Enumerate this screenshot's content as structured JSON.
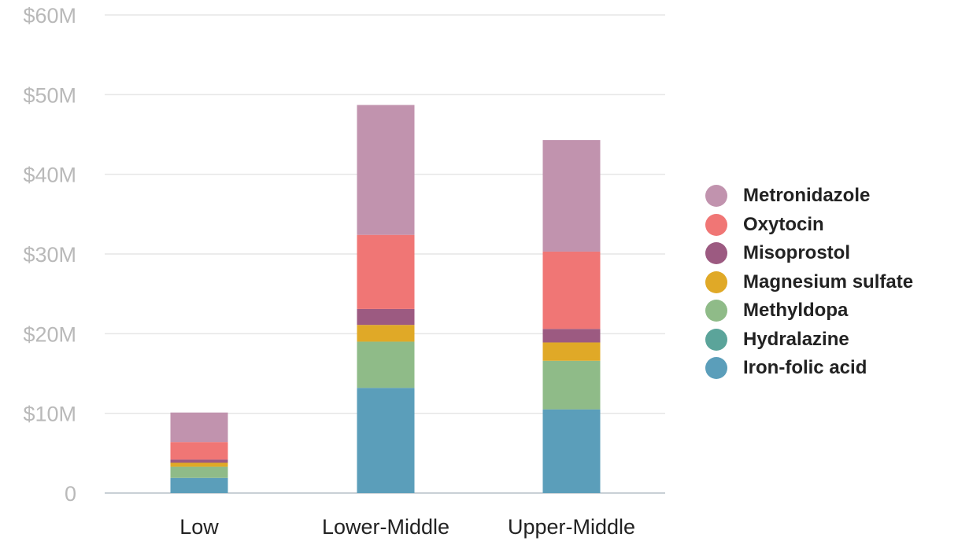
{
  "chart_data": {
    "type": "bar",
    "stacked": true,
    "categories": [
      "Low",
      "Lower-Middle",
      "Upper-Middle"
    ],
    "ylim": [
      0,
      60
    ],
    "yticks": [
      {
        "value": 0,
        "label": "0"
      },
      {
        "value": 10,
        "label": "$10M"
      },
      {
        "value": 20,
        "label": "$20M"
      },
      {
        "value": 30,
        "label": "$30M"
      },
      {
        "value": 40,
        "label": "$40M"
      },
      {
        "value": 50,
        "label": "$50M"
      },
      {
        "value": 60,
        "label": "$60M"
      }
    ],
    "grid": true,
    "legend_position": "right",
    "series": [
      {
        "name": "Iron-folic acid",
        "color": "#5b9eba",
        "values": [
          1.9,
          13.2,
          10.5
        ]
      },
      {
        "name": "Hydralazine",
        "color": "#5ba49a",
        "values": [
          0.0,
          0.0,
          0.0
        ]
      },
      {
        "name": "Methyldopa",
        "color": "#8fbb88",
        "values": [
          1.4,
          5.8,
          6.1
        ]
      },
      {
        "name": "Magnesium sulfate",
        "color": "#e0a927",
        "values": [
          0.5,
          2.1,
          2.3
        ]
      },
      {
        "name": "Misoprostol",
        "color": "#9c5a81",
        "values": [
          0.4,
          2.0,
          1.7
        ]
      },
      {
        "name": "Oxytocin",
        "color": "#f07675",
        "values": [
          2.2,
          9.3,
          9.7
        ]
      },
      {
        "name": "Metronidazole",
        "color": "#c193ae",
        "values": [
          3.7,
          16.3,
          14.0
        ]
      }
    ]
  },
  "legend_items": [
    {
      "label": "Metronidazole",
      "color": "#c193ae"
    },
    {
      "label": "Oxytocin",
      "color": "#f07675"
    },
    {
      "label": "Misoprostol",
      "color": "#9c5a81"
    },
    {
      "label": "Magnesium sulfate",
      "color": "#e0a927"
    },
    {
      "label": "Methyldopa",
      "color": "#8fbb88"
    },
    {
      "label": "Hydralazine",
      "color": "#5ba49a"
    },
    {
      "label": "Iron-folic acid",
      "color": "#5b9eba"
    }
  ]
}
